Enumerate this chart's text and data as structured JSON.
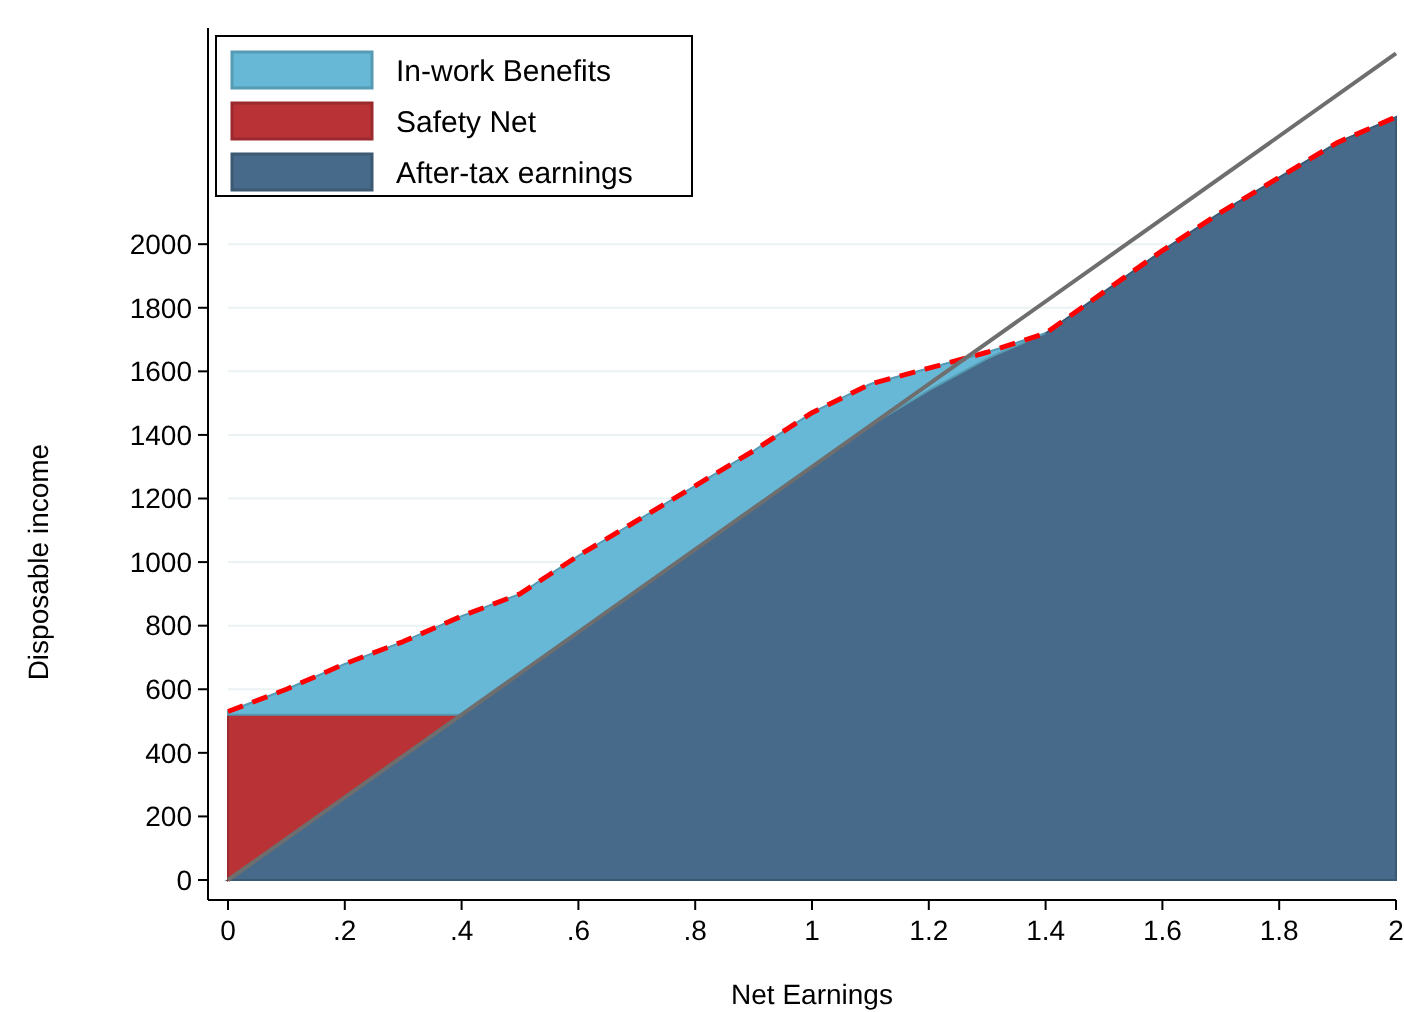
{
  "chart_data": {
    "type": "area",
    "stacked": true,
    "xlabel": "Net Earnings",
    "ylabel": "Disposable income",
    "x": [
      0,
      0.1,
      0.2,
      0.3,
      0.4,
      0.5,
      0.6,
      0.7,
      0.8,
      0.9,
      1.0,
      1.1,
      1.2,
      1.3,
      1.4,
      1.5,
      1.6,
      1.7,
      1.8,
      1.9,
      2.0
    ],
    "series": [
      {
        "name": "After-tax earnings",
        "color": "#486a8a",
        "values": [
          0,
          130,
          260,
          390,
          520,
          650,
          780,
          910,
          1040,
          1170,
          1300,
          1430,
          1540,
          1640,
          1720,
          1850,
          1980,
          2100,
          2210,
          2320,
          2400
        ]
      },
      {
        "name": "Safety Net",
        "color": "#b83236",
        "values": [
          520,
          390,
          260,
          130,
          0,
          null,
          null,
          null,
          null,
          null,
          null,
          null,
          null,
          null,
          null,
          null,
          null,
          null,
          null,
          null,
          null
        ]
      },
      {
        "name": "In-work Benefits",
        "color": "#67b8d6",
        "values": [
          10,
          80,
          160,
          230,
          310,
          250,
          240,
          220,
          200,
          180,
          170,
          130,
          70,
          20,
          0,
          null,
          null,
          null,
          null,
          null,
          null
        ]
      },
      {
        "type": "line",
        "color": "#ff0000",
        "line_style": "dashed",
        "values": [
          530,
          600,
          680,
          750,
          830,
          900,
          1020,
          1130,
          1240,
          1350,
          1470,
          1560,
          1610,
          1660,
          1720,
          1850,
          1980,
          2100,
          2210,
          2320,
          2400
        ]
      },
      {
        "type": "line",
        "color": "#6e6e6e",
        "line_style": "solid",
        "x": [
          0,
          2
        ],
        "values": [
          0,
          2600
        ]
      }
    ],
    "xlim": [
      0,
      2
    ],
    "ylim": [
      0,
      2680
    ],
    "xticks": [
      0,
      {
        "value": 0.2,
        "label": ".2"
      },
      {
        "value": 0.4,
        "label": ".4"
      },
      {
        "value": 0.6,
        "label": ".6"
      },
      {
        "value": 0.8,
        "label": ".8"
      },
      1,
      1.2,
      1.4,
      1.6,
      1.8,
      2
    ],
    "yticks": [
      0,
      200,
      400,
      600,
      800,
      1000,
      1200,
      1400,
      1600,
      1800,
      2000
    ],
    "grid": "y",
    "legend": "top left"
  }
}
